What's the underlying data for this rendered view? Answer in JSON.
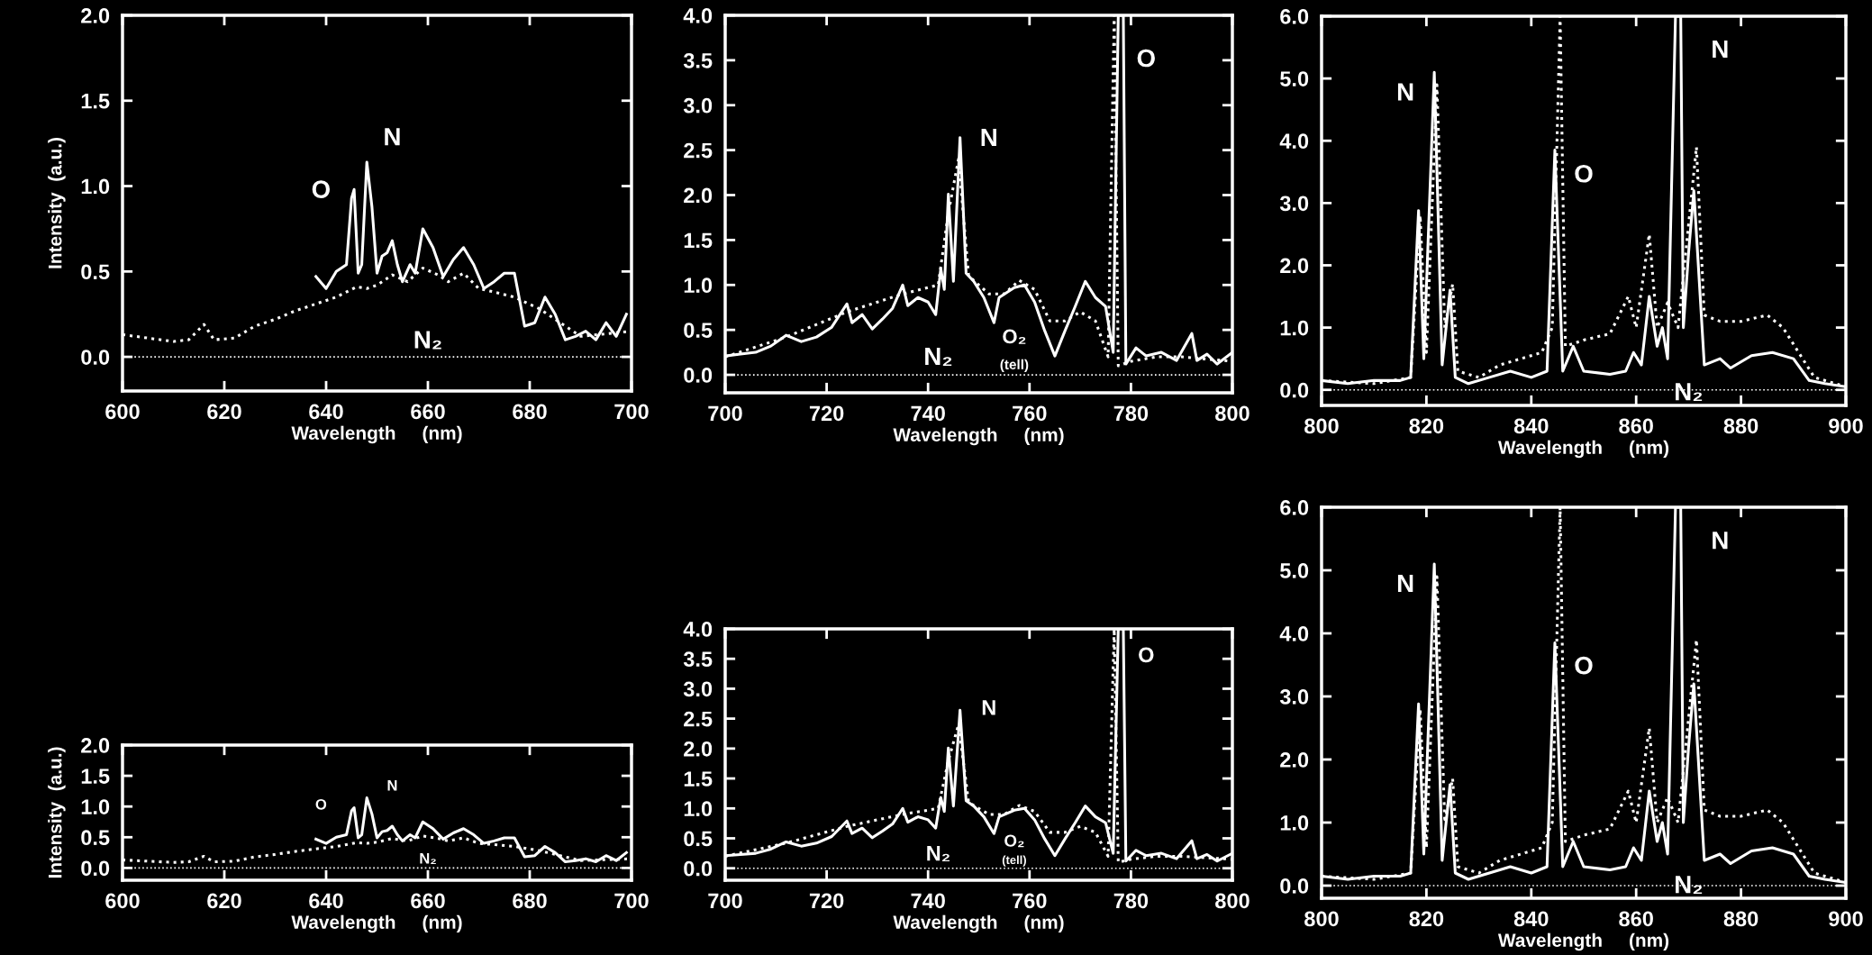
{
  "chart_data": [
    {
      "type": "line",
      "ylabel": "Intensity  (a.u.)",
      "xlabel": "Wavelength     (nm)",
      "xlim": [
        600,
        700
      ],
      "xticks": [
        600,
        620,
        640,
        660,
        680,
        700
      ],
      "ylim": [
        -0.2,
        2.0
      ],
      "yticks": [
        {
          "value": 0,
          "label": "0.0"
        },
        {
          "value": 0.5,
          "label": "0.5"
        },
        {
          "value": 1,
          "label": "1.0"
        },
        {
          "value": 1.5,
          "label": "1.5"
        },
        {
          "value": 2,
          "label": "2.0"
        }
      ],
      "grid": false,
      "legend": false,
      "ref_lines": [
        {
          "axis": "y",
          "value": 0,
          "color": "#ffffff",
          "line_style": "dotted"
        }
      ],
      "annotations": [
        "O",
        "N",
        "N₂"
      ],
      "series": [
        {
          "color": "#ffffff",
          "line_style": "solid",
          "x": [
            638,
            640,
            642,
            644,
            645,
            645.5,
            646.3,
            647,
            648,
            649,
            650,
            651,
            652,
            653,
            654,
            655,
            656.5,
            657.5,
            659,
            661,
            663,
            665,
            667,
            669,
            671,
            673,
            675,
            677,
            679,
            681,
            683,
            685,
            687,
            689,
            691,
            693,
            695,
            697,
            699
          ],
          "values": [
            0.47,
            0.4,
            0.5,
            0.54,
            0.93,
            0.98,
            0.49,
            0.54,
            1.14,
            0.88,
            0.49,
            0.59,
            0.61,
            0.68,
            0.54,
            0.44,
            0.54,
            0.49,
            0.75,
            0.64,
            0.47,
            0.57,
            0.64,
            0.54,
            0.4,
            0.44,
            0.49,
            0.49,
            0.18,
            0.2,
            0.35,
            0.25,
            0.1,
            0.12,
            0.15,
            0.1,
            0.2,
            0.12,
            0.25
          ]
        },
        {
          "color": "#ffffff",
          "line_style": "dotted",
          "x": [
            600,
            605,
            610,
            613,
            616,
            618,
            622,
            626,
            630,
            634,
            638,
            642,
            646,
            648,
            650,
            653,
            656,
            659,
            662,
            664,
            667,
            670,
            673,
            677,
            682,
            690,
            700
          ],
          "values": [
            0.13,
            0.11,
            0.09,
            0.1,
            0.19,
            0.1,
            0.11,
            0.18,
            0.22,
            0.27,
            0.31,
            0.35,
            0.41,
            0.4,
            0.42,
            0.48,
            0.44,
            0.52,
            0.48,
            0.44,
            0.49,
            0.4,
            0.38,
            0.35,
            0.28,
            0.12,
            0.15
          ]
        }
      ]
    },
    {
      "type": "line",
      "xlabel": "Wavelength     (nm)",
      "xlim": [
        700,
        800
      ],
      "xticks": [
        700,
        720,
        740,
        760,
        780,
        800
      ],
      "ylim": [
        -0.2,
        4.0
      ],
      "yticks": [
        {
          "value": 0,
          "label": "0.0"
        },
        {
          "value": 0.5,
          "label": "0.5"
        },
        {
          "value": 1,
          "label": "1.0"
        },
        {
          "value": 1.5,
          "label": "1.5"
        },
        {
          "value": 2,
          "label": "2.0"
        },
        {
          "value": 2.5,
          "label": "2.5"
        },
        {
          "value": 3,
          "label": "3.0"
        },
        {
          "value": 3.5,
          "label": "3.5"
        },
        {
          "value": 4,
          "label": "4.0"
        }
      ],
      "grid": false,
      "legend": false,
      "ref_lines": [
        {
          "axis": "y",
          "value": 0,
          "color": "#ffffff",
          "line_style": "dotted"
        }
      ],
      "annotations": [
        "N",
        "N₂",
        "O₂",
        "(tell)",
        "O"
      ],
      "series": [
        {
          "color": "#ffffff",
          "line_style": "solid",
          "x": [
            700,
            703,
            706,
            709,
            712,
            715,
            718,
            721,
            724,
            725,
            727,
            729,
            731,
            733,
            735,
            736,
            738,
            740,
            741.5,
            742.5,
            743.2,
            744,
            745,
            746.3,
            747.5,
            749,
            751,
            753,
            754,
            757,
            759,
            761,
            763,
            765,
            767,
            769,
            771,
            773,
            775,
            776.5,
            777.5,
            778.5,
            779,
            781,
            783,
            786,
            789,
            792,
            793,
            795,
            797,
            800
          ],
          "values": [
            0.21,
            0.23,
            0.25,
            0.32,
            0.44,
            0.37,
            0.42,
            0.53,
            0.79,
            0.58,
            0.67,
            0.51,
            0.62,
            0.74,
            1.0,
            0.77,
            0.86,
            0.81,
            0.67,
            1.18,
            0.95,
            2.01,
            1.04,
            2.64,
            1.13,
            1.04,
            0.86,
            0.58,
            0.86,
            0.97,
            1.0,
            0.81,
            0.49,
            0.21,
            0.49,
            0.76,
            1.04,
            0.86,
            0.76,
            0.25,
            4.0,
            4.0,
            0.12,
            0.3,
            0.21,
            0.25,
            0.16,
            0.46,
            0.16,
            0.23,
            0.12,
            0.25
          ]
        },
        {
          "color": "#ffffff",
          "line_style": "dotted",
          "x": [
            700,
            712,
            724,
            735,
            742,
            744,
            746,
            748,
            752,
            755,
            758,
            761,
            764,
            767,
            770,
            773,
            775.5,
            776.7,
            777.5,
            780,
            785,
            790,
            800
          ],
          "values": [
            0.2,
            0.42,
            0.7,
            0.9,
            1.0,
            1.8,
            2.4,
            1.1,
            0.9,
            0.9,
            1.05,
            0.95,
            0.6,
            0.6,
            0.7,
            0.6,
            0.2,
            4.0,
            0.1,
            0.15,
            0.2,
            0.2,
            0.15
          ]
        }
      ]
    },
    {
      "type": "line",
      "xlabel": "Wavelength     (nm)",
      "xlim": [
        800,
        900
      ],
      "xticks": [
        800,
        820,
        840,
        860,
        880,
        900
      ],
      "ylim": [
        -0.25,
        6.0
      ],
      "yticks": [
        {
          "value": 0,
          "label": "0.0"
        },
        {
          "value": 1,
          "label": "1.0"
        },
        {
          "value": 2,
          "label": "2.0"
        },
        {
          "value": 3,
          "label": "3.0"
        },
        {
          "value": 4,
          "label": "4.0"
        },
        {
          "value": 5,
          "label": "5.0"
        },
        {
          "value": 6,
          "label": "6.0"
        }
      ],
      "grid": false,
      "legend": false,
      "ref_lines": [
        {
          "axis": "y",
          "value": 0,
          "color": "#ffffff",
          "line_style": "dotted"
        }
      ],
      "annotations": [
        "N",
        "O",
        "N",
        "N₂"
      ],
      "series": [
        {
          "color": "#ffffff",
          "line_style": "solid",
          "x": [
            800,
            805,
            810,
            815,
            817,
            818.5,
            819.5,
            821.5,
            823,
            824.5,
            825.5,
            828,
            832,
            836,
            840,
            843,
            844.5,
            846,
            848,
            850,
            855,
            858,
            859.5,
            861,
            862.5,
            864,
            865,
            866,
            867.5,
            868.5,
            869,
            870,
            871,
            873,
            876,
            878,
            882,
            886,
            890,
            893,
            896,
            900
          ],
          "values": [
            0.15,
            0.1,
            0.15,
            0.15,
            0.2,
            2.88,
            0.5,
            5.1,
            0.4,
            1.6,
            0.2,
            0.1,
            0.2,
            0.3,
            0.2,
            0.3,
            3.85,
            0.3,
            0.7,
            0.3,
            0.25,
            0.3,
            0.6,
            0.4,
            1.5,
            0.7,
            1.0,
            0.5,
            6.0,
            6.0,
            1.0,
            2.2,
            3.2,
            0.4,
            0.5,
            0.35,
            0.55,
            0.6,
            0.5,
            0.15,
            0.1,
            0.05
          ]
        },
        {
          "color": "#ffffff",
          "line_style": "dotted",
          "x": [
            800,
            810,
            817,
            818.8,
            820,
            822,
            823.5,
            825,
            826,
            830,
            834,
            838,
            842,
            844,
            845.5,
            846.5,
            850,
            855,
            858.5,
            860,
            862.5,
            864,
            866,
            868,
            871.5,
            873,
            876,
            880,
            885,
            888,
            891,
            894,
            900
          ],
          "values": [
            0.15,
            0.1,
            0.2,
            2.8,
            0.6,
            4.9,
            1.0,
            1.7,
            0.3,
            0.2,
            0.4,
            0.5,
            0.6,
            1.0,
            6.0,
            0.7,
            0.8,
            0.9,
            1.5,
            1.0,
            2.5,
            1.0,
            1.4,
            1.0,
            3.9,
            1.2,
            1.1,
            1.1,
            1.2,
            1.0,
            0.6,
            0.2,
            0.05
          ]
        }
      ]
    },
    {
      "type": "line",
      "ylabel": "Intensity  (a.u.)",
      "xlabel": "Wavelength     (nm)",
      "xlim": [
        600,
        700
      ],
      "xticks": [
        600,
        620,
        640,
        660,
        680,
        700
      ],
      "ylim": [
        -0.2,
        2.0
      ],
      "yticks": [
        {
          "value": 0,
          "label": "0.0"
        },
        {
          "value": 0.5,
          "label": "0.5"
        },
        {
          "value": 1,
          "label": "1.0"
        },
        {
          "value": 1.5,
          "label": "1.5"
        },
        {
          "value": 2,
          "label": "2.0"
        }
      ],
      "grid": false,
      "legend": false,
      "ref_lines": [
        {
          "axis": "y",
          "value": 0,
          "color": "#ffffff",
          "line_style": "dotted"
        }
      ],
      "annotations": [
        "O",
        "N",
        "N₂"
      ],
      "series": [
        {
          "color": "#ffffff",
          "line_style": "solid",
          "x": [
            638,
            640,
            642,
            644,
            645,
            645.5,
            646.3,
            647,
            648,
            649,
            650,
            651,
            652,
            653,
            654,
            655,
            656.5,
            657.5,
            659,
            661,
            663,
            665,
            667,
            669,
            671,
            673,
            675,
            677,
            679,
            681,
            683,
            685,
            687,
            689,
            691,
            693,
            695,
            697,
            699
          ],
          "values": [
            0.47,
            0.4,
            0.5,
            0.54,
            0.93,
            0.98,
            0.49,
            0.54,
            1.14,
            0.88,
            0.49,
            0.59,
            0.61,
            0.68,
            0.54,
            0.44,
            0.54,
            0.49,
            0.75,
            0.64,
            0.47,
            0.57,
            0.64,
            0.54,
            0.4,
            0.44,
            0.49,
            0.49,
            0.18,
            0.2,
            0.35,
            0.25,
            0.1,
            0.12,
            0.15,
            0.1,
            0.2,
            0.12,
            0.25
          ]
        },
        {
          "color": "#ffffff",
          "line_style": "dotted",
          "x": [
            600,
            605,
            610,
            613,
            616,
            618,
            622,
            626,
            630,
            634,
            638,
            642,
            646,
            648,
            650,
            653,
            656,
            659,
            662,
            664,
            667,
            670,
            673,
            677,
            682,
            690,
            700
          ],
          "values": [
            0.13,
            0.11,
            0.09,
            0.1,
            0.19,
            0.1,
            0.11,
            0.18,
            0.22,
            0.27,
            0.31,
            0.35,
            0.41,
            0.4,
            0.42,
            0.48,
            0.44,
            0.52,
            0.48,
            0.44,
            0.49,
            0.4,
            0.38,
            0.35,
            0.28,
            0.12,
            0.15
          ]
        }
      ]
    },
    {
      "type": "line",
      "xlabel": "Wavelength     (nm)",
      "xlim": [
        700,
        800
      ],
      "xticks": [
        700,
        720,
        740,
        760,
        780,
        800
      ],
      "ylim": [
        -0.2,
        4.0
      ],
      "yticks": [
        {
          "value": 0,
          "label": "0.0"
        },
        {
          "value": 0.5,
          "label": "0.5"
        },
        {
          "value": 1,
          "label": "1.0"
        },
        {
          "value": 1.5,
          "label": "1.5"
        },
        {
          "value": 2,
          "label": "2.0"
        },
        {
          "value": 2.5,
          "label": "2.5"
        },
        {
          "value": 3,
          "label": "3.0"
        },
        {
          "value": 3.5,
          "label": "3.5"
        },
        {
          "value": 4,
          "label": "4.0"
        }
      ],
      "grid": false,
      "legend": false,
      "ref_lines": [
        {
          "axis": "y",
          "value": 0,
          "color": "#ffffff",
          "line_style": "dotted"
        }
      ],
      "annotations": [
        "N",
        "N₂",
        "O₂",
        "(tell)",
        "O"
      ],
      "series": [
        {
          "color": "#ffffff",
          "line_style": "solid",
          "x": [
            700,
            703,
            706,
            709,
            712,
            715,
            718,
            721,
            724,
            725,
            727,
            729,
            731,
            733,
            735,
            736,
            738,
            740,
            741.5,
            742.5,
            743.2,
            744,
            745,
            746.3,
            747.5,
            749,
            751,
            753,
            754,
            757,
            759,
            761,
            763,
            765,
            767,
            769,
            771,
            773,
            775,
            776.5,
            777.5,
            778.5,
            779,
            781,
            783,
            786,
            789,
            792,
            793,
            795,
            797,
            800
          ],
          "values": [
            0.21,
            0.23,
            0.25,
            0.32,
            0.44,
            0.37,
            0.42,
            0.53,
            0.79,
            0.58,
            0.67,
            0.51,
            0.62,
            0.74,
            1.0,
            0.77,
            0.86,
            0.81,
            0.67,
            1.18,
            0.95,
            2.01,
            1.04,
            2.64,
            1.13,
            1.04,
            0.86,
            0.58,
            0.86,
            0.97,
            1.0,
            0.81,
            0.49,
            0.21,
            0.49,
            0.76,
            1.04,
            0.86,
            0.76,
            0.25,
            4.0,
            4.0,
            0.12,
            0.3,
            0.21,
            0.25,
            0.16,
            0.46,
            0.16,
            0.23,
            0.12,
            0.25
          ]
        },
        {
          "color": "#ffffff",
          "line_style": "dotted",
          "x": [
            700,
            712,
            724,
            735,
            742,
            744,
            746,
            748,
            752,
            755,
            758,
            761,
            764,
            767,
            770,
            773,
            775.5,
            776.7,
            777.5,
            780,
            785,
            790,
            800
          ],
          "values": [
            0.2,
            0.42,
            0.7,
            0.9,
            1.0,
            1.8,
            2.4,
            1.1,
            0.9,
            0.9,
            1.05,
            0.95,
            0.6,
            0.6,
            0.7,
            0.6,
            0.2,
            4.0,
            0.1,
            0.15,
            0.2,
            0.2,
            0.15
          ]
        }
      ]
    },
    {
      "type": "line",
      "xlabel": "Wavelength     (nm)",
      "xlim": [
        800,
        900
      ],
      "xticks": [
        800,
        820,
        840,
        860,
        880,
        900
      ],
      "ylim": [
        -0.2,
        6.0
      ],
      "yticks": [
        {
          "value": 0,
          "label": "0.0"
        },
        {
          "value": 1,
          "label": "1.0"
        },
        {
          "value": 2,
          "label": "2.0"
        },
        {
          "value": 3,
          "label": "3.0"
        },
        {
          "value": 4,
          "label": "4.0"
        },
        {
          "value": 5,
          "label": "5.0"
        },
        {
          "value": 6,
          "label": "6.0"
        }
      ],
      "grid": false,
      "legend": false,
      "ref_lines": [
        {
          "axis": "y",
          "value": 0,
          "color": "#ffffff",
          "line_style": "dotted"
        }
      ],
      "annotations": [
        "N",
        "O",
        "N",
        "N₂"
      ],
      "series": [
        {
          "color": "#ffffff",
          "line_style": "solid",
          "x": [
            800,
            805,
            810,
            815,
            817,
            818.5,
            819.5,
            821.5,
            823,
            824.5,
            825.5,
            828,
            832,
            836,
            840,
            843,
            844.5,
            846,
            848,
            850,
            855,
            858,
            859.5,
            861,
            862.5,
            864,
            865,
            866,
            867.5,
            868.5,
            869,
            870,
            871,
            873,
            876,
            878,
            882,
            886,
            890,
            893,
            896,
            900
          ],
          "values": [
            0.15,
            0.1,
            0.15,
            0.15,
            0.2,
            2.88,
            0.5,
            5.1,
            0.4,
            1.6,
            0.2,
            0.1,
            0.2,
            0.3,
            0.2,
            0.3,
            3.85,
            0.3,
            0.7,
            0.3,
            0.25,
            0.3,
            0.6,
            0.4,
            1.5,
            0.7,
            1.0,
            0.5,
            6.0,
            6.0,
            1.0,
            2.2,
            3.2,
            0.4,
            0.5,
            0.35,
            0.55,
            0.6,
            0.5,
            0.15,
            0.1,
            0.05
          ]
        },
        {
          "color": "#ffffff",
          "line_style": "dotted",
          "x": [
            800,
            810,
            817,
            818.8,
            820,
            822,
            823.5,
            825,
            826,
            830,
            834,
            838,
            842,
            844,
            845.5,
            846.5,
            850,
            855,
            858.5,
            860,
            862.5,
            864,
            866,
            868,
            871.5,
            873,
            876,
            880,
            885,
            888,
            891,
            894,
            900
          ],
          "values": [
            0.15,
            0.1,
            0.2,
            2.8,
            0.6,
            4.9,
            1.0,
            1.7,
            0.3,
            0.2,
            0.4,
            0.5,
            0.6,
            1.0,
            6.0,
            0.7,
            0.8,
            0.9,
            1.5,
            1.0,
            2.5,
            1.0,
            1.4,
            1.0,
            3.9,
            1.2,
            1.1,
            1.1,
            1.2,
            1.0,
            0.6,
            0.2,
            0.05
          ]
        }
      ]
    }
  ]
}
